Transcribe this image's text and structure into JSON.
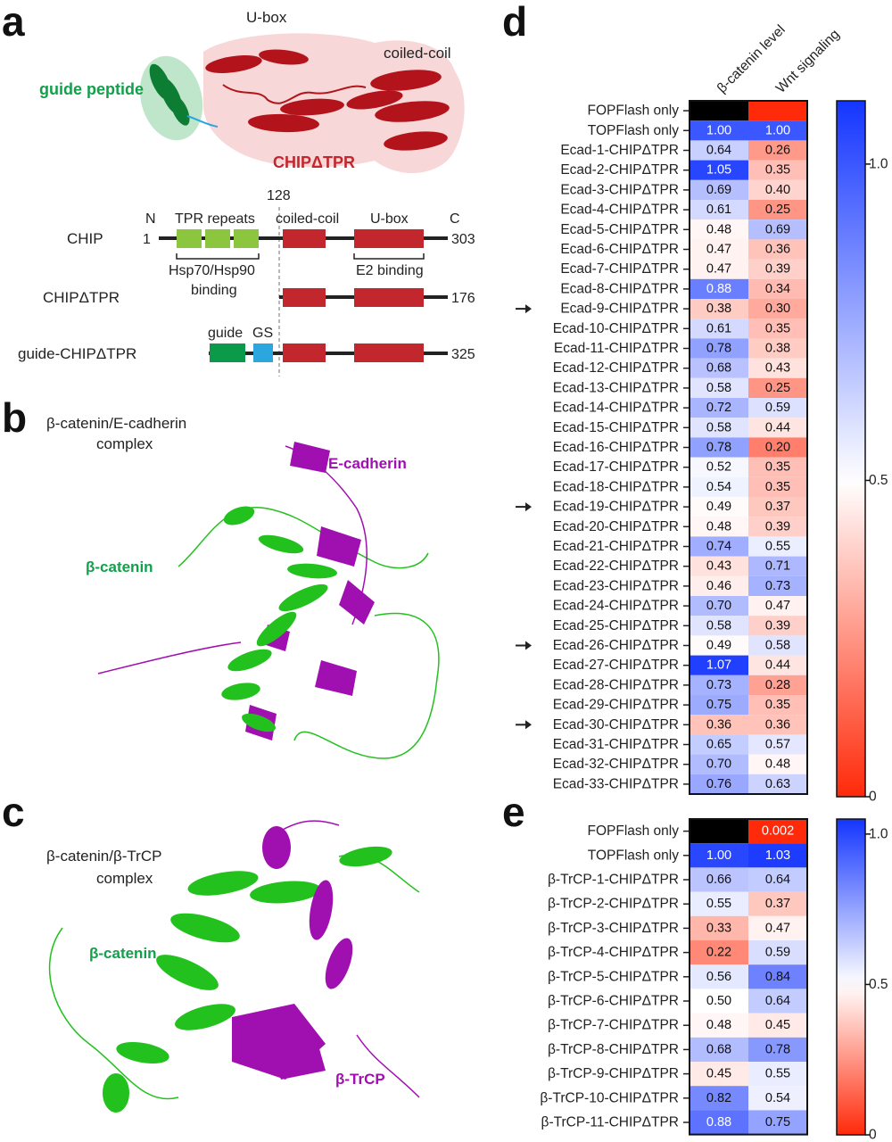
{
  "panels": {
    "a": "a",
    "b": "b",
    "c": "c",
    "d": "d",
    "e": "e"
  },
  "panel_a": {
    "structure_labels": {
      "ubox": "U-box",
      "coiled_coil": "coiled-coil",
      "guide_peptide": "guide peptide",
      "chip_dtpr": "CHIPΔTPR"
    },
    "boundary_label": "128",
    "rows": [
      {
        "name": "CHIP",
        "start": "1",
        "end": "303"
      },
      {
        "name": "CHIPΔTPR",
        "end": "176"
      },
      {
        "name": "guide-CHIPΔTPR",
        "end": "325"
      }
    ],
    "domain_labels": {
      "n": "N",
      "c": "C",
      "tpr": "TPR repeats",
      "coiled_coil": "coiled-coil",
      "ubox": "U-box",
      "guide": "guide",
      "gs": "GS"
    },
    "binding_labels": {
      "hsp_line1": "Hsp70/Hsp90",
      "hsp_line2": "binding",
      "e2": "E2 binding"
    },
    "colors": {
      "tpr": "#8cc63f",
      "domain": "#c1272d",
      "guide": "#0a9a4a",
      "gs": "#2ba6df",
      "backbone": "#222222"
    }
  },
  "panel_b": {
    "title_line1": "β-catenin/E-cadherin",
    "title_line2": "complex",
    "labels": {
      "ecad": "E-cadherin",
      "bcat": "β-catenin"
    },
    "colors": {
      "bcat": "#22c11d",
      "partner": "#a010b0"
    }
  },
  "panel_c": {
    "title_line1": "β-catenin/β-TrCP",
    "title_line2": "complex",
    "labels": {
      "bcat": "β-catenin",
      "btrcp": "β-TrCP"
    },
    "colors": {
      "bcat": "#22c11d",
      "partner": "#a010b0"
    }
  },
  "chart_data": [
    {
      "panel": "d",
      "type": "heatmap",
      "columns": [
        "β-catenin level",
        "Wnt signaling"
      ],
      "colorbar": {
        "min": 0,
        "max": 1.1,
        "ticks": [
          0,
          0.5,
          1.0
        ],
        "tick_labels": [
          "0",
          "0.5",
          "1.0"
        ],
        "colors": {
          "low": "#ff2a0a",
          "mid": "#ffffff",
          "high": "#1435ff"
        }
      },
      "rows": [
        {
          "label": "FOPFlash only",
          "values": [
            null,
            null
          ],
          "display": [
            "",
            ""
          ],
          "fill": [
            "#000000",
            "#ff2a0a"
          ]
        },
        {
          "label": "TOPFlash only",
          "values": [
            1.0,
            1.0
          ],
          "display": [
            "1.00",
            "1.00"
          ]
        },
        {
          "label": "Ecad-1-CHIPΔTPR",
          "values": [
            0.64,
            0.26
          ],
          "display": [
            "0.64",
            "0.26"
          ]
        },
        {
          "label": "Ecad-2-CHIPΔTPR",
          "values": [
            1.05,
            0.35
          ],
          "display": [
            "1.05",
            "0.35"
          ]
        },
        {
          "label": "Ecad-3-CHIPΔTPR",
          "values": [
            0.69,
            0.4
          ],
          "display": [
            "0.69",
            "0.40"
          ]
        },
        {
          "label": "Ecad-4-CHIPΔTPR",
          "values": [
            0.61,
            0.25
          ],
          "display": [
            "0.61",
            "0.25"
          ]
        },
        {
          "label": "Ecad-5-CHIPΔTPR",
          "values": [
            0.48,
            0.69
          ],
          "display": [
            "0.48",
            "0.69"
          ]
        },
        {
          "label": "Ecad-6-CHIPΔTPR",
          "values": [
            0.47,
            0.36
          ],
          "display": [
            "0.47",
            "0.36"
          ]
        },
        {
          "label": "Ecad-7-CHIPΔTPR",
          "values": [
            0.47,
            0.39
          ],
          "display": [
            "0.47",
            "0.39"
          ]
        },
        {
          "label": "Ecad-8-CHIPΔTPR",
          "values": [
            0.88,
            0.34
          ],
          "display": [
            "0.88",
            "0.34"
          ]
        },
        {
          "label": "Ecad-9-CHIPΔTPR",
          "values": [
            0.38,
            0.3
          ],
          "display": [
            "0.38",
            "0.30"
          ],
          "arrow": true
        },
        {
          "label": "Ecad-10-CHIPΔTPR",
          "values": [
            0.61,
            0.35
          ],
          "display": [
            "0.61",
            "0.35"
          ]
        },
        {
          "label": "Ecad-11-CHIPΔTPR",
          "values": [
            0.78,
            0.38
          ],
          "display": [
            "0.78",
            "0.38"
          ]
        },
        {
          "label": "Ecad-12-CHIPΔTPR",
          "values": [
            0.68,
            0.43
          ],
          "display": [
            "0.68",
            "0.43"
          ]
        },
        {
          "label": "Ecad-13-CHIPΔTPR",
          "values": [
            0.58,
            0.25
          ],
          "display": [
            "0.58",
            "0.25"
          ]
        },
        {
          "label": "Ecad-14-CHIPΔTPR",
          "values": [
            0.72,
            0.59
          ],
          "display": [
            "0.72",
            "0.59"
          ]
        },
        {
          "label": "Ecad-15-CHIPΔTPR",
          "values": [
            0.58,
            0.44
          ],
          "display": [
            "0.58",
            "0.44"
          ]
        },
        {
          "label": "Ecad-16-CHIPΔTPR",
          "values": [
            0.78,
            0.2
          ],
          "display": [
            "0.78",
            "0.20"
          ]
        },
        {
          "label": "Ecad-17-CHIPΔTPR",
          "values": [
            0.52,
            0.35
          ],
          "display": [
            "0.52",
            "0.35"
          ]
        },
        {
          "label": "Ecad-18-CHIPΔTPR",
          "values": [
            0.54,
            0.35
          ],
          "display": [
            "0.54",
            "0.35"
          ]
        },
        {
          "label": "Ecad-19-CHIPΔTPR",
          "values": [
            0.49,
            0.37
          ],
          "display": [
            "0.49",
            "0.37"
          ],
          "arrow": true
        },
        {
          "label": "Ecad-20-CHIPΔTPR",
          "values": [
            0.48,
            0.39
          ],
          "display": [
            "0.48",
            "0.39"
          ]
        },
        {
          "label": "Ecad-21-CHIPΔTPR",
          "values": [
            0.74,
            0.55
          ],
          "display": [
            "0.74",
            "0.55"
          ]
        },
        {
          "label": "Ecad-22-CHIPΔTPR",
          "values": [
            0.43,
            0.71
          ],
          "display": [
            "0.43",
            "0.71"
          ]
        },
        {
          "label": "Ecad-23-CHIPΔTPR",
          "values": [
            0.46,
            0.73
          ],
          "display": [
            "0.46",
            "0.73"
          ]
        },
        {
          "label": "Ecad-24-CHIPΔTPR",
          "values": [
            0.7,
            0.47
          ],
          "display": [
            "0.70",
            "0.47"
          ]
        },
        {
          "label": "Ecad-25-CHIPΔTPR",
          "values": [
            0.58,
            0.39
          ],
          "display": [
            "0.58",
            "0.39"
          ]
        },
        {
          "label": "Ecad-26-CHIPΔTPR",
          "values": [
            0.49,
            0.58
          ],
          "display": [
            "0.49",
            "0.58"
          ],
          "arrow": true
        },
        {
          "label": "Ecad-27-CHIPΔTPR",
          "values": [
            1.07,
            0.44
          ],
          "display": [
            "1.07",
            "0.44"
          ]
        },
        {
          "label": "Ecad-28-CHIPΔTPR",
          "values": [
            0.73,
            0.28
          ],
          "display": [
            "0.73",
            "0.28"
          ]
        },
        {
          "label": "Ecad-29-CHIPΔTPR",
          "values": [
            0.75,
            0.35
          ],
          "display": [
            "0.75",
            "0.35"
          ]
        },
        {
          "label": "Ecad-30-CHIPΔTPR",
          "values": [
            0.36,
            0.36
          ],
          "display": [
            "0.36",
            "0.36"
          ],
          "arrow": true
        },
        {
          "label": "Ecad-31-CHIPΔTPR",
          "values": [
            0.65,
            0.57
          ],
          "display": [
            "0.65",
            "0.57"
          ]
        },
        {
          "label": "Ecad-32-CHIPΔTPR",
          "values": [
            0.7,
            0.48
          ],
          "display": [
            "0.70",
            "0.48"
          ]
        },
        {
          "label": "Ecad-33-CHIPΔTPR",
          "values": [
            0.76,
            0.63
          ],
          "display": [
            "0.76",
            "0.63"
          ]
        }
      ]
    },
    {
      "panel": "e",
      "type": "heatmap",
      "columns": [],
      "colorbar": {
        "min": 0,
        "max": 1.05,
        "ticks": [
          0,
          0.5,
          1.0
        ],
        "tick_labels": [
          "0",
          "0.5",
          "1.0"
        ],
        "colors": {
          "low": "#ff2a0a",
          "mid": "#ffffff",
          "high": "#1435ff"
        }
      },
      "rows": [
        {
          "label": "FOPFlash only",
          "values": [
            null,
            0.002
          ],
          "display": [
            "",
            "0.002"
          ],
          "fill": [
            "#000000",
            "#ff2a0a"
          ]
        },
        {
          "label": "TOPFlash only",
          "values": [
            1.0,
            1.03
          ],
          "display": [
            "1.00",
            "1.03"
          ]
        },
        {
          "label": "β-TrCP-1-CHIPΔTPR",
          "values": [
            0.66,
            0.64
          ],
          "display": [
            "0.66",
            "0.64"
          ]
        },
        {
          "label": "β-TrCP-2-CHIPΔTPR",
          "values": [
            0.55,
            0.37
          ],
          "display": [
            "0.55",
            "0.37"
          ]
        },
        {
          "label": "β-TrCP-3-CHIPΔTPR",
          "values": [
            0.33,
            0.47
          ],
          "display": [
            "0.33",
            "0.47"
          ]
        },
        {
          "label": "β-TrCP-4-CHIPΔTPR",
          "values": [
            0.22,
            0.59
          ],
          "display": [
            "0.22",
            "0.59"
          ]
        },
        {
          "label": "β-TrCP-5-CHIPΔTPR",
          "values": [
            0.56,
            0.84
          ],
          "display": [
            "0.56",
            "0.84"
          ]
        },
        {
          "label": "β-TrCP-6-CHIPΔTPR",
          "values": [
            0.5,
            0.64
          ],
          "display": [
            "0.50",
            "0.64"
          ]
        },
        {
          "label": "β-TrCP-7-CHIPΔTPR",
          "values": [
            0.48,
            0.45
          ],
          "display": [
            "0.48",
            "0.45"
          ]
        },
        {
          "label": "β-TrCP-8-CHIPΔTPR",
          "values": [
            0.68,
            0.78
          ],
          "display": [
            "0.68",
            "0.78"
          ]
        },
        {
          "label": "β-TrCP-9-CHIPΔTPR",
          "values": [
            0.45,
            0.55
          ],
          "display": [
            "0.45",
            "0.55"
          ]
        },
        {
          "label": "β-TrCP-10-CHIPΔTPR",
          "values": [
            0.82,
            0.54
          ],
          "display": [
            "0.82",
            "0.54"
          ]
        },
        {
          "label": "β-TrCP-11-CHIPΔTPR",
          "values": [
            0.88,
            0.75
          ],
          "display": [
            "0.88",
            "0.75"
          ]
        }
      ]
    }
  ]
}
